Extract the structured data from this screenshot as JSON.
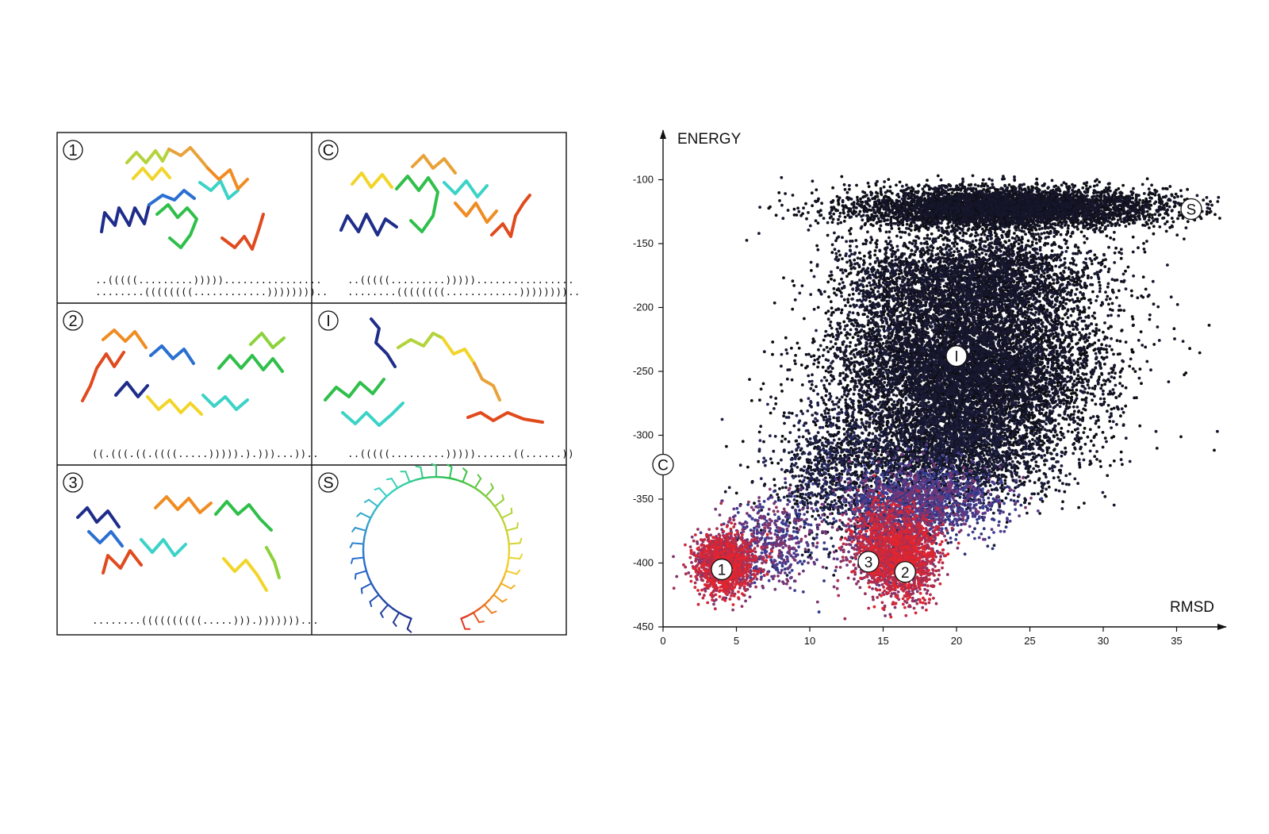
{
  "panels": [
    {
      "label": "1",
      "dot_brackets": [
        "..(((((.........)))))................",
        "........((((((((............)))))))).."
      ]
    },
    {
      "label": "C",
      "dot_brackets": [
        "..(((((.........)))))................",
        "........((((((((............)))))))).."
      ]
    },
    {
      "label": "2",
      "dot_brackets": [
        "((.(((.((.((((.....))))).).)))...)).."
      ]
    },
    {
      "label": "I",
      "dot_brackets": [
        "..(((((.........)))))......((......))"
      ]
    },
    {
      "label": "3",
      "dot_brackets": [
        "........((((((((((.....))).)))))))..."
      ]
    },
    {
      "label": "S",
      "dot_brackets": []
    }
  ],
  "chart_data": {
    "type": "scatter",
    "xlabel": "RMSD",
    "ylabel": "ENERGY",
    "xlim": [
      0,
      38
    ],
    "ylim": [
      -450,
      -70
    ],
    "xticks": [
      0,
      5,
      10,
      15,
      20,
      25,
      30,
      35
    ],
    "yticks": [
      -100,
      -150,
      -200,
      -250,
      -300,
      -350,
      -400,
      -450
    ],
    "grid": false,
    "colors": {
      "low_energy": "#e8242a",
      "mid": "#3a3f9a",
      "high_energy": "#0a0a0a"
    },
    "clusters": [
      {
        "label": "1",
        "x": 4,
        "y": -405
      },
      {
        "label": "2",
        "x": 16.5,
        "y": -407
      },
      {
        "label": "3",
        "x": 14,
        "y": -399
      },
      {
        "label": "I",
        "x": 20,
        "y": -238
      },
      {
        "label": "S",
        "x": 36,
        "y": -123
      },
      {
        "label": "C",
        "x": 0,
        "y": -323
      }
    ],
    "point_groups": [
      {
        "cx": 4.2,
        "cy": -400,
        "sx": 1.0,
        "sy": 12,
        "n": 1500,
        "c0": 0.0,
        "c1": 0.35
      },
      {
        "cx": 7.5,
        "cy": -385,
        "sx": 1.6,
        "sy": 18,
        "n": 500,
        "c0": 0.25,
        "c1": 0.6
      },
      {
        "cx": 16.5,
        "cy": -395,
        "sx": 1.1,
        "sy": 17,
        "n": 1600,
        "c0": 0.0,
        "c1": 0.35
      },
      {
        "cx": 14.3,
        "cy": -385,
        "sx": 0.9,
        "sy": 17,
        "n": 600,
        "c0": 0.0,
        "c1": 0.45
      },
      {
        "cx": 17.5,
        "cy": -352,
        "sx": 2.6,
        "sy": 14,
        "n": 1500,
        "c0": 0.3,
        "c1": 0.7
      },
      {
        "cx": 21.0,
        "cy": -245,
        "sx": 4.3,
        "sy": 32,
        "n": 7500,
        "c0": 0.85,
        "c1": 1.0
      },
      {
        "cx": 19.5,
        "cy": -310,
        "sx": 3.8,
        "sy": 22,
        "n": 2800,
        "c0": 0.8,
        "c1": 1.0
      },
      {
        "cx": 23.5,
        "cy": -122,
        "sx": 5.2,
        "sy": 8,
        "n": 5000,
        "c0": 0.88,
        "c1": 1.0
      },
      {
        "cx": 21.5,
        "cy": -175,
        "sx": 4.2,
        "sy": 18,
        "n": 2600,
        "c0": 0.85,
        "c1": 1.0
      },
      {
        "cx": 11.5,
        "cy": -330,
        "sx": 2.2,
        "sy": 28,
        "n": 900,
        "c0": 0.7,
        "c1": 1.0
      },
      {
        "cx": 15.0,
        "cy": -210,
        "sx": 2.0,
        "sy": 40,
        "n": 600,
        "c0": 0.8,
        "c1": 1.0
      }
    ]
  }
}
